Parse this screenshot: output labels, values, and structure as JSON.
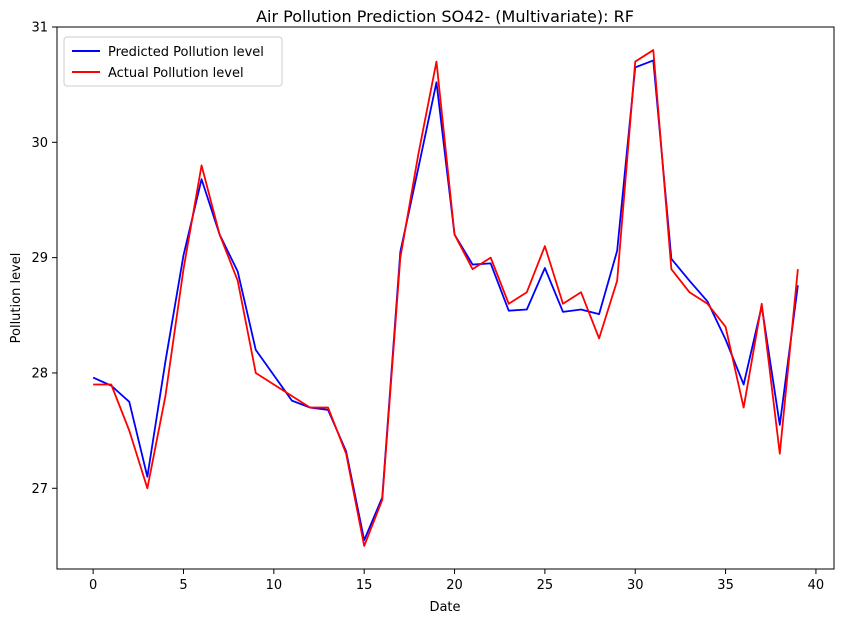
{
  "chart_data": {
    "type": "line",
    "title": "Air Pollution Prediction SO42- (Multivariate): RF",
    "xlabel": "Date",
    "ylabel": "Pollution level",
    "xlim": [
      -2,
      41
    ],
    "ylim": [
      26.3,
      31
    ],
    "xticks": [
      0,
      5,
      10,
      15,
      20,
      25,
      30,
      35,
      40
    ],
    "yticks": [
      27,
      28,
      29,
      30,
      31
    ],
    "grid": false,
    "legend_position": "upper-left",
    "x": [
      0,
      1,
      2,
      3,
      4,
      5,
      6,
      7,
      8,
      9,
      10,
      11,
      12,
      13,
      14,
      15,
      16,
      17,
      18,
      19,
      20,
      21,
      22,
      23,
      24,
      25,
      26,
      27,
      28,
      29,
      30,
      31,
      32,
      33,
      34,
      35,
      36,
      37,
      38,
      39
    ],
    "series": [
      {
        "name": "Predicted Pollution level",
        "color": "#0000ff",
        "values": [
          27.96,
          27.89,
          27.75,
          27.1,
          28.1,
          29.02,
          29.68,
          29.2,
          28.88,
          28.2,
          27.98,
          27.76,
          27.7,
          27.68,
          27.32,
          26.55,
          26.92,
          29.05,
          29.78,
          30.52,
          29.2,
          28.94,
          28.95,
          28.54,
          28.55,
          28.91,
          28.53,
          28.55,
          28.51,
          29.06,
          30.65,
          30.71,
          28.99,
          28.8,
          28.62,
          28.29,
          27.9,
          28.58,
          27.55,
          28.76
        ]
      },
      {
        "name": "Actual Pollution level",
        "color": "#ff0000",
        "values": [
          27.9,
          27.9,
          27.5,
          27.0,
          27.8,
          28.9,
          29.8,
          29.2,
          28.8,
          28.0,
          27.9,
          27.8,
          27.7,
          27.7,
          27.3,
          26.5,
          26.9,
          29.0,
          29.9,
          30.7,
          29.2,
          28.9,
          29.0,
          28.6,
          28.7,
          29.1,
          28.6,
          28.7,
          28.3,
          28.8,
          30.7,
          30.8,
          28.9,
          28.7,
          28.6,
          28.4,
          27.7,
          28.6,
          27.3,
          28.9
        ]
      }
    ]
  }
}
